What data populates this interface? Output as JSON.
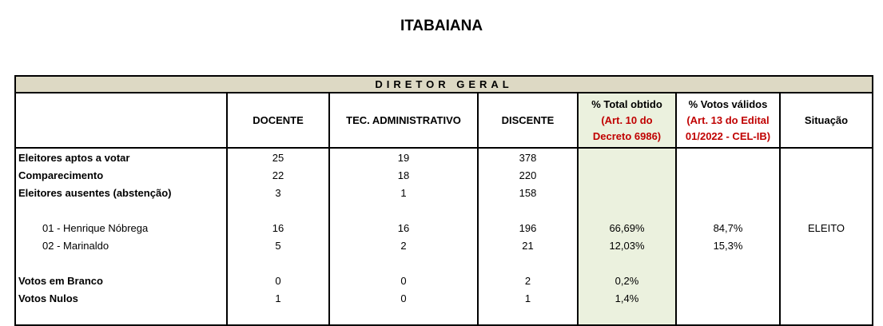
{
  "title": "ITABAIANA",
  "section": "DIRETOR GERAL",
  "headers": {
    "docente": "DOCENTE",
    "tec": "TEC. ADMINISTRATIVO",
    "discente": "DISCENTE",
    "total": {
      "line1": "% Total obtido",
      "line2": "(Art. 10 do",
      "line3": "Decreto 6986)"
    },
    "validos": {
      "line1": "% Votos válidos",
      "line2": "(Art. 13 do Edital",
      "line3": "01/2022 - CEL-IB)"
    },
    "situacao": "Situação"
  },
  "rows": [
    {
      "label": "Eleitores aptos a votar",
      "docente": "25",
      "tec": "19",
      "discente": "378",
      "total": "",
      "validos": "",
      "situacao": ""
    },
    {
      "label": "Comparecimento",
      "docente": "22",
      "tec": "18",
      "discente": "220",
      "total": "",
      "validos": "",
      "situacao": ""
    },
    {
      "label": "Eleitores ausentes (abstenção)",
      "docente": "3",
      "tec": "1",
      "discente": "158",
      "total": "",
      "validos": "",
      "situacao": ""
    },
    {
      "label": "01 - Henrique Nóbrega",
      "docente": "16",
      "tec": "16",
      "discente": "196",
      "total": "66,69%",
      "validos": "84,7%",
      "situacao": "ELEITO"
    },
    {
      "label": "02 - Marinaldo",
      "docente": "5",
      "tec": "2",
      "discente": "21",
      "total": "12,03%",
      "validos": "15,3%",
      "situacao": ""
    },
    {
      "label": "Votos em Branco",
      "docente": "0",
      "tec": "0",
      "discente": "2",
      "total": "0,2%",
      "validos": "",
      "situacao": ""
    },
    {
      "label": "Votos Nulos",
      "docente": "1",
      "tec": "0",
      "discente": "1",
      "total": "1,4%",
      "validos": "",
      "situacao": ""
    }
  ],
  "colors": {
    "band": "#ddd9c4",
    "highlight_column": "#ebf1de",
    "note_text": "#c00000"
  }
}
